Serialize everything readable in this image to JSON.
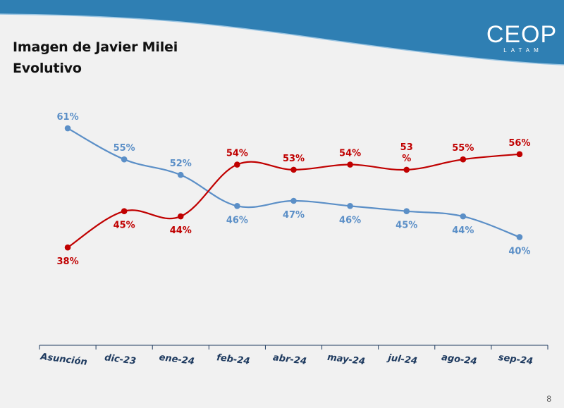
{
  "title_line1": "Imagen de Javier Milei",
  "title_line2": "Evolutivo",
  "logo_text": "CEOP",
  "logo_subtext": "LATAM",
  "page_number": "8",
  "colors": {
    "banner": "#2f7fb3",
    "positive": "#c00000",
    "negative": "#5b8fc7",
    "axis": "#1f3b60"
  },
  "chart_data": {
    "type": "line",
    "title": "Imagen de Javier Milei",
    "subtitle": "Evolutivo",
    "categories": [
      "Asunción",
      "dic-23",
      "ene-24",
      "feb-24",
      "abr-24",
      "may-24",
      "jul-24",
      "ago-24",
      "sep-24"
    ],
    "series": [
      {
        "color": "#5b8fc7",
        "values": [
          61,
          55,
          52,
          46,
          47,
          46,
          45,
          44,
          40
        ]
      },
      {
        "color": "#c00000",
        "values": [
          38,
          45,
          44,
          54,
          53,
          54,
          53,
          55,
          56
        ]
      }
    ],
    "labels": [
      [
        "61%",
        "55%",
        "52%",
        "46%",
        "47%",
        "46%",
        "45%",
        "44%",
        "40%"
      ],
      [
        "38%",
        "45%",
        "44%",
        "54%",
        "53%",
        "54%",
        "53\n%",
        "55%",
        "56%"
      ]
    ],
    "ylim": [
      30,
      64
    ],
    "grid": false,
    "legend": "none"
  }
}
